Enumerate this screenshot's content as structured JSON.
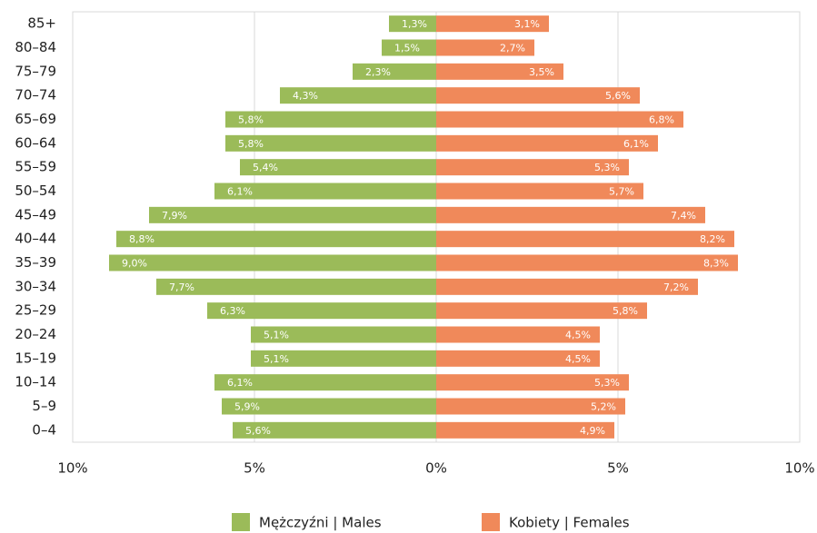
{
  "chart_data": {
    "type": "pyramid",
    "categories": [
      "85+",
      "80–84",
      "75–79",
      "70–74",
      "65–69",
      "60–64",
      "55–59",
      "50–54",
      "45–49",
      "40–44",
      "35–39",
      "30–34",
      "25–29",
      "20–24",
      "15–19",
      "10–14",
      "5–9",
      "0–4"
    ],
    "series": [
      {
        "name": "Mężczyźni | Males",
        "color": "#9bbb59",
        "values": [
          -1.3,
          -1.5,
          -2.3,
          -4.3,
          -5.8,
          -5.8,
          -5.4,
          -6.1,
          -7.9,
          -8.8,
          -9.0,
          -7.7,
          -6.3,
          -5.1,
          -5.1,
          -6.1,
          -5.9,
          -5.6
        ],
        "value_labels": [
          "1,3%",
          "1,5%",
          "2,3%",
          "4,3%",
          "5,8%",
          "5,8%",
          "5,4%",
          "6,1%",
          "7,9%",
          "8,8%",
          "9,0%",
          "7,7%",
          "6,3%",
          "5,1%",
          "5,1%",
          "6,1%",
          "5,9%",
          "5,6%"
        ]
      },
      {
        "name": "Kobiety | Females",
        "color": "#f0895a",
        "values": [
          3.1,
          2.7,
          3.5,
          5.6,
          6.8,
          6.1,
          5.3,
          5.7,
          7.4,
          8.2,
          8.3,
          7.2,
          5.8,
          4.5,
          4.5,
          5.3,
          5.2,
          4.9
        ],
        "value_labels": [
          "3,1%",
          "2,7%",
          "3,5%",
          "5,6%",
          "6,8%",
          "6,1%",
          "5,3%",
          "5,7%",
          "7,4%",
          "8,2%",
          "8,3%",
          "7,2%",
          "5,8%",
          "4,5%",
          "4,5%",
          "5,3%",
          "5,2%",
          "4,9%"
        ]
      }
    ],
    "xlim": [
      -10,
      10
    ],
    "xticks": [
      {
        "value": -10,
        "label": "10%"
      },
      {
        "value": -5,
        "label": "5%"
      },
      {
        "value": 0,
        "label": "0%"
      },
      {
        "value": 5,
        "label": "5%"
      },
      {
        "value": 10,
        "label": "10%"
      }
    ],
    "grid": true,
    "legend": "bottom"
  }
}
